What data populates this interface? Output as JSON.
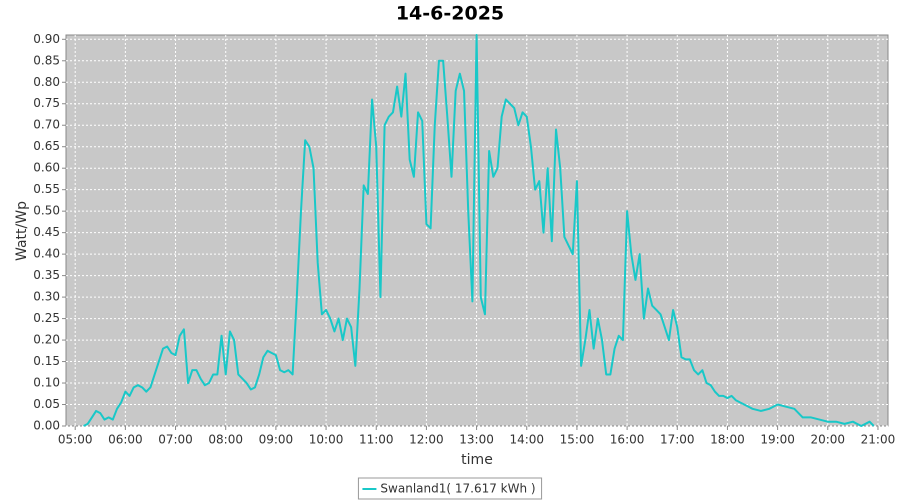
{
  "chart_data": {
    "type": "line",
    "title": "14-6-2025",
    "x_label": "time",
    "y_label": "Watt/Wp",
    "grid": true,
    "background": "#c8c8c8",
    "legend_position": "bottom",
    "xlim": [
      "04:49",
      "21:12"
    ],
    "xticks": [
      "05:00",
      "06:00",
      "07:00",
      "08:00",
      "09:00",
      "10:00",
      "11:00",
      "12:00",
      "13:00",
      "14:00",
      "15:00",
      "16:00",
      "17:00",
      "18:00",
      "19:00",
      "20:00",
      "21:00"
    ],
    "ylim": [
      0,
      0.91
    ],
    "yticks": [
      {
        "value": 0,
        "label": "0.00"
      },
      {
        "value": 0.05,
        "label": "0.05"
      },
      {
        "value": 0.1,
        "label": "0.10"
      },
      {
        "value": 0.15,
        "label": "0.15"
      },
      {
        "value": 0.2,
        "label": "0.20"
      },
      {
        "value": 0.25,
        "label": "0.25"
      },
      {
        "value": 0.3,
        "label": "0.30"
      },
      {
        "value": 0.35,
        "label": "0.35"
      },
      {
        "value": 0.4,
        "label": "0.40"
      },
      {
        "value": 0.45,
        "label": "0.45"
      },
      {
        "value": 0.5,
        "label": "0.50"
      },
      {
        "value": 0.55,
        "label": "0.55"
      },
      {
        "value": 0.6,
        "label": "0.60"
      },
      {
        "value": 0.65,
        "label": "0.65"
      },
      {
        "value": 0.7,
        "label": "0.70"
      },
      {
        "value": 0.75,
        "label": "0.75"
      },
      {
        "value": 0.8,
        "label": "0.80"
      },
      {
        "value": 0.85,
        "label": "0.85"
      },
      {
        "value": 0.9,
        "label": "0.90"
      }
    ],
    "x": [
      "05:10",
      "05:15",
      "05:20",
      "05:25",
      "05:30",
      "05:35",
      "05:40",
      "05:45",
      "05:50",
      "05:55",
      "06:00",
      "06:05",
      "06:10",
      "06:15",
      "06:20",
      "06:25",
      "06:30",
      "06:35",
      "06:40",
      "06:45",
      "06:50",
      "06:55",
      "07:00",
      "07:05",
      "07:10",
      "07:15",
      "07:20",
      "07:25",
      "07:30",
      "07:35",
      "07:40",
      "07:45",
      "07:50",
      "07:55",
      "08:00",
      "08:05",
      "08:10",
      "08:15",
      "08:20",
      "08:25",
      "08:30",
      "08:35",
      "08:40",
      "08:45",
      "08:50",
      "08:55",
      "09:00",
      "09:05",
      "09:10",
      "09:15",
      "09:20",
      "09:25",
      "09:30",
      "09:35",
      "09:40",
      "09:45",
      "09:50",
      "09:55",
      "10:00",
      "10:05",
      "10:10",
      "10:15",
      "10:20",
      "10:25",
      "10:30",
      "10:35",
      "10:40",
      "10:45",
      "10:50",
      "10:55",
      "11:00",
      "11:05",
      "11:10",
      "11:15",
      "11:20",
      "11:25",
      "11:30",
      "11:35",
      "11:40",
      "11:45",
      "11:50",
      "11:55",
      "12:00",
      "12:05",
      "12:10",
      "12:15",
      "12:20",
      "12:25",
      "12:30",
      "12:35",
      "12:40",
      "12:45",
      "12:50",
      "12:55",
      "13:00",
      "13:05",
      "13:10",
      "13:15",
      "13:20",
      "13:25",
      "13:30",
      "13:35",
      "13:40",
      "13:45",
      "13:50",
      "13:55",
      "14:00",
      "14:05",
      "14:10",
      "14:15",
      "14:20",
      "14:25",
      "14:30",
      "14:35",
      "14:40",
      "14:45",
      "14:50",
      "14:55",
      "15:00",
      "15:05",
      "15:10",
      "15:15",
      "15:20",
      "15:25",
      "15:30",
      "15:35",
      "15:40",
      "15:45",
      "15:50",
      "15:55",
      "16:00",
      "16:05",
      "16:10",
      "16:15",
      "16:20",
      "16:25",
      "16:30",
      "16:35",
      "16:40",
      "16:45",
      "16:50",
      "16:55",
      "17:00",
      "17:05",
      "17:10",
      "17:15",
      "17:20",
      "17:25",
      "17:30",
      "17:35",
      "17:40",
      "17:45",
      "17:50",
      "17:55",
      "18:00",
      "18:05",
      "18:10",
      "18:15",
      "18:20",
      "18:25",
      "18:30",
      "18:40",
      "18:50",
      "19:00",
      "19:10",
      "19:20",
      "19:30",
      "19:40",
      "19:50",
      "20:00",
      "20:10",
      "20:20",
      "20:30",
      "20:40",
      "20:50",
      "20:55"
    ],
    "series": [
      {
        "name": "Swanland1( 17.617 kWh )",
        "color": "#19c8c8",
        "values": [
          0,
          0.005,
          0.02,
          0.035,
          0.03,
          0.015,
          0.02,
          0.015,
          0.04,
          0.055,
          0.08,
          0.07,
          0.09,
          0.095,
          0.09,
          0.08,
          0.09,
          0.12,
          0.15,
          0.18,
          0.185,
          0.17,
          0.165,
          0.21,
          0.225,
          0.1,
          0.13,
          0.13,
          0.11,
          0.095,
          0.1,
          0.12,
          0.12,
          0.21,
          0.12,
          0.22,
          0.2,
          0.12,
          0.11,
          0.1,
          0.085,
          0.09,
          0.12,
          0.16,
          0.175,
          0.17,
          0.165,
          0.13,
          0.125,
          0.13,
          0.12,
          0.3,
          0.5,
          0.665,
          0.65,
          0.6,
          0.38,
          0.26,
          0.27,
          0.25,
          0.22,
          0.25,
          0.2,
          0.25,
          0.23,
          0.14,
          0.32,
          0.56,
          0.54,
          0.76,
          0.65,
          0.3,
          0.7,
          0.72,
          0.73,
          0.79,
          0.72,
          0.82,
          0.62,
          0.58,
          0.73,
          0.71,
          0.47,
          0.46,
          0.7,
          0.85,
          0.85,
          0.72,
          0.58,
          0.78,
          0.82,
          0.78,
          0.5,
          0.29,
          0.91,
          0.3,
          0.26,
          0.64,
          0.58,
          0.6,
          0.72,
          0.76,
          0.75,
          0.74,
          0.7,
          0.73,
          0.72,
          0.65,
          0.55,
          0.57,
          0.45,
          0.6,
          0.43,
          0.69,
          0.6,
          0.44,
          0.42,
          0.4,
          0.57,
          0.14,
          0.2,
          0.27,
          0.18,
          0.25,
          0.2,
          0.12,
          0.12,
          0.18,
          0.21,
          0.2,
          0.5,
          0.4,
          0.34,
          0.4,
          0.25,
          0.32,
          0.28,
          0.27,
          0.26,
          0.23,
          0.2,
          0.27,
          0.23,
          0.16,
          0.155,
          0.155,
          0.13,
          0.12,
          0.13,
          0.1,
          0.095,
          0.08,
          0.07,
          0.07,
          0.065,
          0.07,
          0.06,
          0.055,
          0.05,
          0.045,
          0.04,
          0.035,
          0.04,
          0.05,
          0.045,
          0.04,
          0.02,
          0.02,
          0.015,
          0.01,
          0.01,
          0.005,
          0.01,
          0,
          0.01,
          0
        ]
      }
    ]
  }
}
